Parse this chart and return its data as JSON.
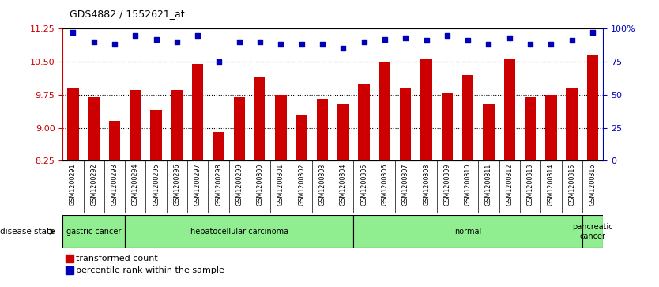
{
  "title": "GDS4882 / 1552621_at",
  "samples": [
    "GSM1200291",
    "GSM1200292",
    "GSM1200293",
    "GSM1200294",
    "GSM1200295",
    "GSM1200296",
    "GSM1200297",
    "GSM1200298",
    "GSM1200299",
    "GSM1200300",
    "GSM1200301",
    "GSM1200302",
    "GSM1200303",
    "GSM1200304",
    "GSM1200305",
    "GSM1200306",
    "GSM1200307",
    "GSM1200308",
    "GSM1200309",
    "GSM1200310",
    "GSM1200311",
    "GSM1200312",
    "GSM1200313",
    "GSM1200314",
    "GSM1200315",
    "GSM1200316"
  ],
  "transformed_count": [
    9.9,
    9.7,
    9.15,
    9.85,
    9.4,
    9.85,
    10.45,
    8.9,
    9.7,
    10.15,
    9.75,
    9.3,
    9.65,
    9.55,
    10.0,
    10.5,
    9.9,
    10.55,
    9.8,
    10.2,
    9.55,
    10.55,
    9.7,
    9.75,
    9.9,
    10.65
  ],
  "percentile_rank": [
    97,
    90,
    88,
    95,
    92,
    90,
    95,
    75,
    90,
    90,
    88,
    88,
    88,
    85,
    90,
    92,
    93,
    91,
    95,
    91,
    88,
    93,
    88,
    88,
    91,
    97
  ],
  "group_bounds": [
    [
      0,
      3,
      "gastric cancer"
    ],
    [
      3,
      14,
      "hepatocellular carcinoma"
    ],
    [
      14,
      25,
      "normal"
    ],
    [
      25,
      26,
      "pancreatic\ncancer"
    ]
  ],
  "ylim_left": [
    8.25,
    11.25
  ],
  "ylim_right": [
    0,
    100
  ],
  "yticks_left": [
    8.25,
    9.0,
    9.75,
    10.5,
    11.25
  ],
  "yticks_right": [
    0,
    25,
    50,
    75,
    100
  ],
  "bar_color": "#CC0000",
  "dot_color": "#0000BB",
  "bg_color": "#FFFFFF",
  "axis_color_left": "#CC0000",
  "axis_color_right": "#0000BB",
  "disease_state_label": "disease state",
  "legend_bar": "transformed count",
  "legend_dot": "percentile rank within the sample",
  "grid_lines": [
    9.0,
    9.75,
    10.5
  ],
  "group_color": "#90EE90"
}
